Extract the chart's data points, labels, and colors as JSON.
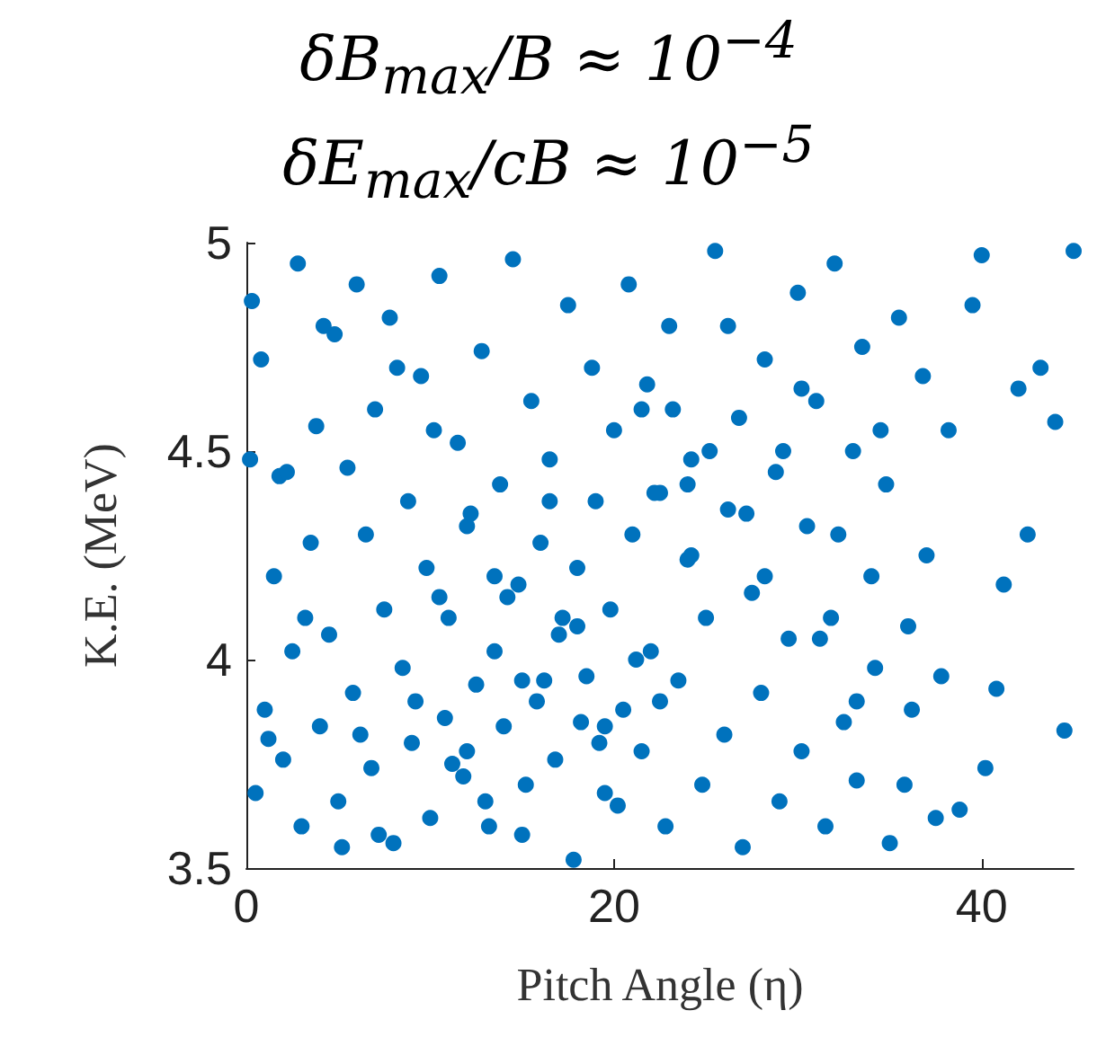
{
  "chart_data": {
    "type": "scatter",
    "title": "δB$_{max}$/B ≈ 10$^{−4}$",
    "subtitle": "δE$_{max}$/cB ≈ 10$^{−5}$",
    "xlabel": "Pitch Angle (η)",
    "ylabel": "K.E. (MeV)",
    "xlim": [
      0,
      45
    ],
    "xticks": [
      0,
      20,
      40
    ],
    "ylim": [
      3.5,
      5
    ],
    "yticks": [
      3.5,
      4,
      4.5,
      5
    ],
    "marker": "circle",
    "series": [
      {
        "color": "#0072bd",
        "x": [
          45,
          44.5,
          44,
          43.2,
          42.5,
          42,
          41.2,
          40.8,
          40,
          40.2,
          39.5,
          38.8,
          38.2,
          37.5,
          37,
          36.8,
          36.2,
          36,
          35.5,
          35,
          34.8,
          34.2,
          34,
          33.5,
          33.2,
          33,
          32.5,
          32,
          31.8,
          31.5,
          31,
          30.5,
          30.2,
          30,
          29.5,
          29,
          28.8,
          28.2,
          28,
          27.5,
          27,
          26.8,
          26.2,
          26,
          25.5,
          25,
          24.8,
          24.2,
          24,
          23.5,
          23,
          22.8,
          22.5,
          22,
          21.8,
          21.5,
          21,
          20.8,
          20.5,
          20,
          19.8,
          19.5,
          19,
          18.8,
          18.5,
          18,
          17.8,
          17.5,
          17,
          16.8,
          16.5,
          16,
          15.8,
          15.5,
          15,
          14.8,
          14.5,
          14,
          13.8,
          13.5,
          13,
          12.8,
          12.5,
          12,
          11.8,
          11.5,
          11,
          10.8,
          10.5,
          10,
          9.8,
          9.5,
          9,
          8.8,
          8.5,
          8,
          7.8,
          7.5,
          7,
          6.8,
          6.5,
          6,
          5.8,
          5.5,
          5,
          4.8,
          4.5,
          4,
          3.8,
          3.5,
          3,
          2.8,
          2.5,
          2,
          1.8,
          1.5,
          1,
          0.8,
          0.5,
          0.2,
          0.3,
          1.2,
          2.2,
          3.2,
          4.2,
          5.2,
          6.2,
          7.2,
          8.2,
          9.2,
          10.2,
          11.2,
          12.2,
          13.2,
          14.2,
          15.2,
          16.2,
          17.2,
          18.2,
          19.2,
          20.2,
          21.2,
          22.2,
          23.2,
          24.2,
          25.2,
          26.2,
          27.2,
          28.2,
          29.2,
          30.2,
          31.2,
          32.2,
          33.2,
          34.5,
          35.8,
          37.8,
          19.5,
          16.5,
          13.5,
          21.5,
          18,
          12,
          24,
          15,
          10.5,
          22.5
        ],
        "values": [
          4.98,
          3.83,
          4.57,
          4.7,
          4.3,
          4.65,
          4.18,
          3.93,
          4.97,
          3.74,
          4.85,
          3.64,
          4.55,
          3.62,
          4.25,
          4.68,
          3.88,
          4.08,
          4.82,
          3.56,
          4.42,
          3.98,
          4.2,
          4.75,
          3.71,
          4.5,
          3.85,
          4.95,
          4.1,
          3.6,
          4.62,
          4.32,
          3.78,
          4.88,
          4.05,
          3.66,
          4.45,
          4.72,
          3.92,
          4.16,
          3.55,
          4.58,
          4.36,
          3.82,
          4.98,
          4.1,
          3.7,
          4.48,
          4.24,
          3.95,
          4.8,
          3.6,
          4.4,
          4.02,
          4.66,
          3.78,
          4.3,
          4.9,
          3.88,
          4.55,
          4.12,
          3.68,
          4.38,
          4.7,
          3.96,
          4.22,
          3.52,
          4.85,
          4.06,
          3.76,
          4.48,
          4.28,
          3.9,
          4.62,
          3.58,
          4.18,
          4.96,
          3.84,
          4.42,
          4.02,
          3.66,
          4.74,
          3.94,
          4.32,
          3.72,
          4.52,
          4.1,
          3.86,
          4.92,
          3.62,
          4.22,
          4.68,
          3.8,
          4.38,
          3.98,
          3.56,
          4.82,
          4.12,
          4.6,
          3.74,
          4.3,
          4.9,
          3.92,
          4.46,
          3.66,
          4.78,
          4.06,
          3.84,
          4.56,
          4.28,
          3.6,
          4.95,
          4.02,
          3.76,
          4.44,
          4.2,
          3.88,
          4.72,
          3.68,
          4.48,
          4.86,
          3.81,
          4.45,
          4.1,
          4.8,
          3.55,
          3.82,
          3.58,
          4.7,
          3.9,
          4.55,
          3.75,
          4.35,
          3.6,
          4.15,
          3.7,
          3.95,
          4.1,
          3.85,
          3.8,
          3.65,
          4.0,
          4.4,
          4.6,
          4.25,
          4.5,
          4.8,
          4.35,
          4.2,
          4.5,
          4.65,
          4.05,
          4.3,
          3.9,
          4.55,
          3.7,
          3.96,
          3.84,
          4.38,
          4.2,
          4.6,
          4.08,
          3.78,
          4.42,
          3.95,
          4.15,
          3.9
        ]
      }
    ]
  }
}
